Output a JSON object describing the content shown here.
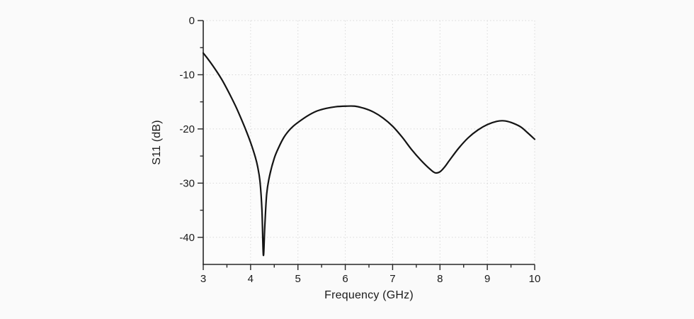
{
  "page": {
    "background": "#fafafa",
    "plot_background": "#fcfcfc"
  },
  "chart_data": {
    "type": "line",
    "xlabel": "Frequency (GHz)",
    "ylabel": "S11 (dB)",
    "xlim": [
      3,
      10
    ],
    "ylim": [
      -45,
      0
    ],
    "x_ticks": [
      3,
      4,
      5,
      6,
      7,
      8,
      9,
      10
    ],
    "x_tick_labels": [
      "3",
      "4",
      "5",
      "6",
      "7",
      "8",
      "9",
      "10"
    ],
    "x_minor_step": 0.5,
    "y_ticks": [
      0,
      -10,
      -20,
      -30,
      -40
    ],
    "y_tick_labels": [
      "0",
      "-10",
      "-20",
      "-30",
      "-40"
    ],
    "y_minor_step": 5,
    "grid": {
      "show": true,
      "style": "dotted",
      "color": "#d9d9d9"
    },
    "axis_color": "#262626",
    "tick_label_color": "#1a1a1a",
    "legend": "none",
    "series": [
      {
        "name": "S11",
        "color": "#141414",
        "width": 2.2,
        "points": [
          [
            3.0,
            -6.0
          ],
          [
            3.1,
            -7.1
          ],
          [
            3.2,
            -8.3
          ],
          [
            3.3,
            -9.6
          ],
          [
            3.4,
            -11.0
          ],
          [
            3.5,
            -12.6
          ],
          [
            3.6,
            -14.3
          ],
          [
            3.7,
            -16.1
          ],
          [
            3.8,
            -18.1
          ],
          [
            3.9,
            -20.2
          ],
          [
            4.0,
            -22.5
          ],
          [
            4.1,
            -25.2
          ],
          [
            4.15,
            -27.0
          ],
          [
            4.2,
            -29.8
          ],
          [
            4.24,
            -35.0
          ],
          [
            4.27,
            -43.3
          ],
          [
            4.3,
            -38.0
          ],
          [
            4.34,
            -32.0
          ],
          [
            4.4,
            -28.7
          ],
          [
            4.5,
            -25.4
          ],
          [
            4.6,
            -23.3
          ],
          [
            4.7,
            -21.6
          ],
          [
            4.8,
            -20.4
          ],
          [
            4.9,
            -19.5
          ],
          [
            5.0,
            -18.8
          ],
          [
            5.2,
            -17.6
          ],
          [
            5.4,
            -16.7
          ],
          [
            5.6,
            -16.2
          ],
          [
            5.8,
            -15.9
          ],
          [
            6.0,
            -15.8
          ],
          [
            6.2,
            -15.8
          ],
          [
            6.4,
            -16.2
          ],
          [
            6.6,
            -16.9
          ],
          [
            6.8,
            -18.0
          ],
          [
            7.0,
            -19.5
          ],
          [
            7.2,
            -21.5
          ],
          [
            7.4,
            -23.8
          ],
          [
            7.6,
            -25.8
          ],
          [
            7.8,
            -27.5
          ],
          [
            7.9,
            -28.1
          ],
          [
            8.0,
            -27.9
          ],
          [
            8.1,
            -27.0
          ],
          [
            8.2,
            -25.8
          ],
          [
            8.4,
            -23.5
          ],
          [
            8.6,
            -21.6
          ],
          [
            8.8,
            -20.2
          ],
          [
            9.0,
            -19.2
          ],
          [
            9.2,
            -18.6
          ],
          [
            9.35,
            -18.5
          ],
          [
            9.5,
            -18.8
          ],
          [
            9.7,
            -19.6
          ],
          [
            9.85,
            -20.7
          ],
          [
            10.0,
            -21.9
          ]
        ]
      }
    ]
  }
}
